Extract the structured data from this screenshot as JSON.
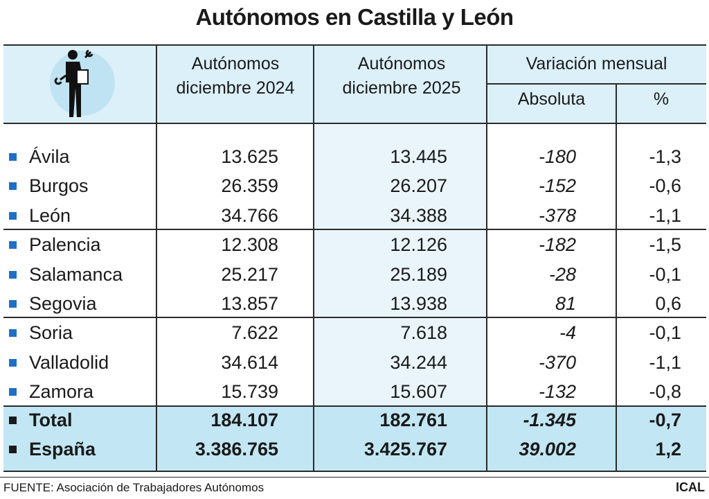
{
  "title": "Autónomos en Castilla y León",
  "header": {
    "col_2024": "Autónomos diciembre 2024",
    "col_2025": "Autónomos diciembre 2025",
    "variation": "Variación mensual",
    "absolute": "Absoluta",
    "percent": "%"
  },
  "table": {
    "rows": [
      [
        "Ávila",
        "13.625",
        "13.445",
        "-180",
        "-1,3"
      ],
      [
        "Burgos",
        "26.359",
        "26.207",
        "-152",
        "-0,6"
      ],
      [
        "León",
        "34.766",
        "34.388",
        "-378",
        "-1,1"
      ],
      [
        "Palencia",
        "12.308",
        "12.126",
        "-182",
        "-1,5"
      ],
      [
        "Salamanca",
        "25.217",
        "25.189",
        "-28",
        "-0,1"
      ],
      [
        "Segovia",
        "13.857",
        "13.938",
        "81",
        "0,6"
      ],
      [
        "Soria",
        "7.622",
        "7.618",
        "-4",
        "-0,1"
      ],
      [
        "Valladolid",
        "34.614",
        "34.244",
        "-370",
        "-1,1"
      ],
      [
        "Zamora",
        "15.739",
        "15.607",
        "-132",
        "-0,8"
      ]
    ],
    "totals": [
      [
        "Total",
        "184.107",
        "182.761",
        "-1.345",
        "-0,7"
      ],
      [
        "España",
        "3.386.765",
        "3.425.767",
        "39.002",
        "1,2"
      ]
    ]
  },
  "footer": {
    "source": "FUENTE: Asociación de Trabajadores Autónomos",
    "brand": "ICAL"
  }
}
